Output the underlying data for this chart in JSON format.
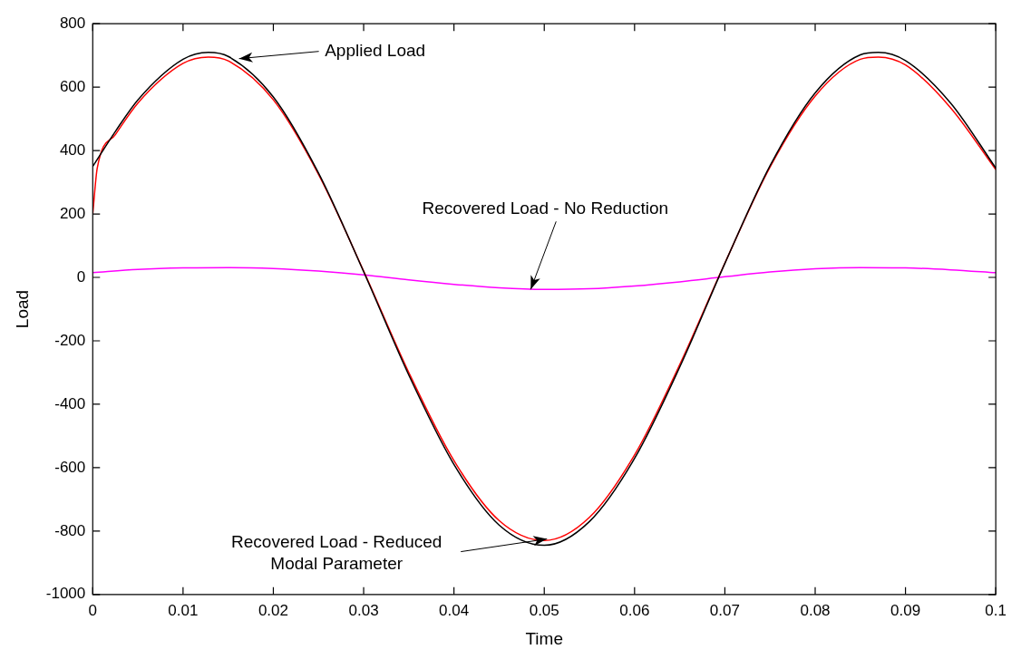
{
  "chart_data": {
    "type": "line",
    "xlabel": "Time",
    "ylabel": "Load",
    "xlim": [
      0,
      0.1
    ],
    "xticks": [
      0,
      0.01,
      0.02,
      0.03,
      0.04,
      0.05,
      0.06,
      0.07,
      0.08,
      0.09,
      0.1
    ],
    "ylim": [
      -1000,
      800
    ],
    "yticks": [
      -1000,
      -800,
      -600,
      -400,
      -200,
      0,
      200,
      400,
      600,
      800
    ],
    "grid": false,
    "legend": false,
    "marker": "none",
    "line_style": "solid",
    "series": [
      {
        "color": "#000000",
        "x": [
          0,
          0.0025,
          0.005,
          0.01,
          0.0128,
          0.015,
          0.02,
          0.025,
          0.03,
          0.035,
          0.04,
          0.045,
          0.05,
          0.055,
          0.06,
          0.065,
          0.07,
          0.075,
          0.08,
          0.085,
          0.087,
          0.09,
          0.095,
          0.1
        ],
        "values": [
          350,
          460,
          560,
          688,
          710,
          697,
          569,
          329,
          18,
          -308,
          -590,
          -781,
          -845,
          -770,
          -571,
          -283,
          44,
          352,
          582,
          702,
          710,
          684,
          550,
          345
        ]
      },
      {
        "color": "#ff0000",
        "x": [
          0,
          0.0005,
          0.0025,
          0.005,
          0.01,
          0.0128,
          0.015,
          0.02,
          0.025,
          0.03,
          0.035,
          0.04,
          0.045,
          0.05,
          0.055,
          0.06,
          0.065,
          0.07,
          0.075,
          0.08,
          0.085,
          0.087,
          0.09,
          0.095,
          0.1
        ],
        "values": [
          200,
          345,
          450,
          550,
          675,
          695,
          683,
          560,
          325,
          20,
          -300,
          -578,
          -767,
          -830,
          -757,
          -560,
          -275,
          45,
          348,
          572,
          688,
          695,
          670,
          535,
          340
        ]
      },
      {
        "color": "#ff00ff",
        "x": [
          0,
          0.005,
          0.01,
          0.015,
          0.02,
          0.025,
          0.03,
          0.035,
          0.04,
          0.045,
          0.05,
          0.055,
          0.06,
          0.065,
          0.07,
          0.075,
          0.08,
          0.085,
          0.09,
          0.095,
          0.1
        ],
        "values": [
          15,
          25,
          30,
          31,
          28,
          20,
          8,
          -8,
          -22,
          -33,
          -38,
          -36,
          -27,
          -14,
          2,
          17,
          27,
          31,
          30,
          24,
          15
        ]
      }
    ],
    "annotations": [
      {
        "text": "Applied Load",
        "x": 0.0162,
        "y": 690
      },
      {
        "text": "Recovered Load - No Reduction",
        "x": 0.0485,
        "y": -38
      },
      {
        "text": "Recovered Load - Reduced\nModal Parameter",
        "x": 0.0503,
        "y": -825
      }
    ]
  }
}
